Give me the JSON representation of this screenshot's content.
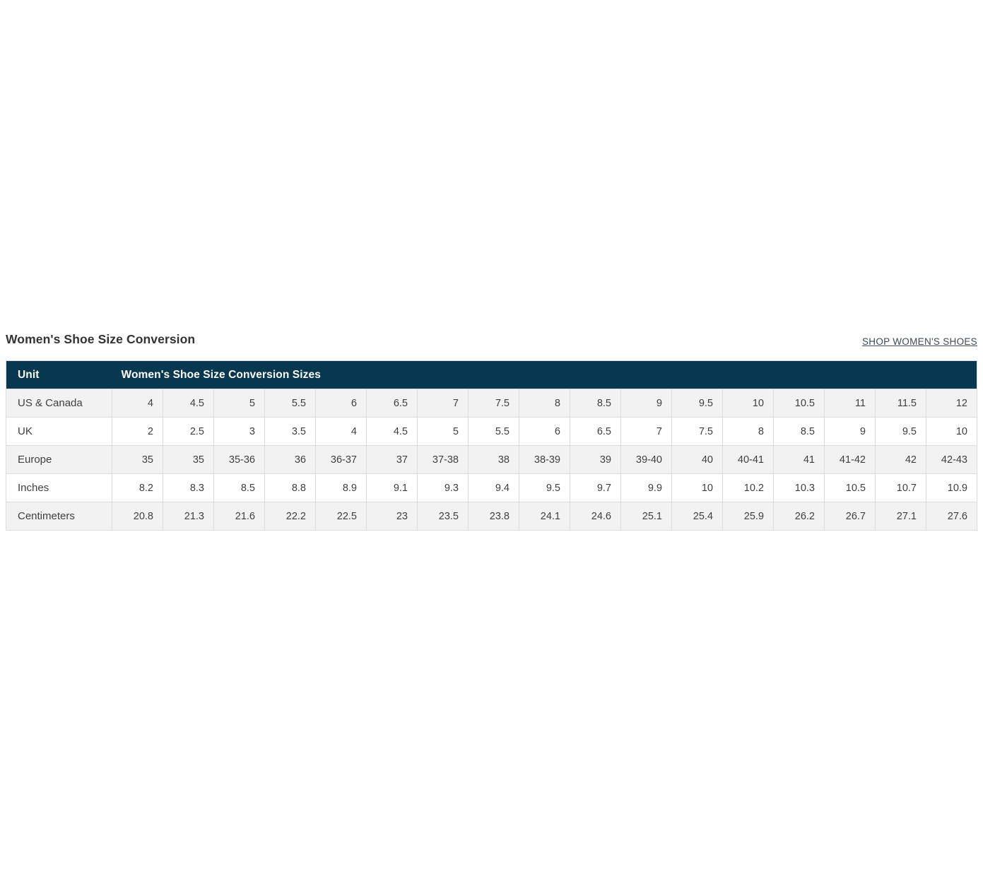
{
  "page": {
    "title": "Women's Shoe Size Conversion",
    "shop_link_label": "SHOP WOMEN'S SHOES"
  },
  "table": {
    "header": {
      "unit_label": "Unit",
      "sizes_label": "Women's Shoe Size Conversion Sizes"
    },
    "rows": [
      {
        "label": "US & Canada",
        "values": [
          "4",
          "4.5",
          "5",
          "5.5",
          "6",
          "6.5",
          "7",
          "7.5",
          "8",
          "8.5",
          "9",
          "9.5",
          "10",
          "10.5",
          "11",
          "11.5",
          "12"
        ]
      },
      {
        "label": "UK",
        "values": [
          "2",
          "2.5",
          "3",
          "3.5",
          "4",
          "4.5",
          "5",
          "5.5",
          "6",
          "6.5",
          "7",
          "7.5",
          "8",
          "8.5",
          "9",
          "9.5",
          "10"
        ]
      },
      {
        "label": "Europe",
        "values": [
          "35",
          "35",
          "35-36",
          "36",
          "36-37",
          "37",
          "37-38",
          "38",
          "38-39",
          "39",
          "39-40",
          "40",
          "40-41",
          "41",
          "41-42",
          "42",
          "42-43"
        ]
      },
      {
        "label": "Inches",
        "values": [
          "8.2",
          "8.3",
          "8.5",
          "8.8",
          "8.9",
          "9.1",
          "9.3",
          "9.4",
          "9.5",
          "9.7",
          "9.9",
          "10",
          "10.2",
          "10.3",
          "10.5",
          "10.7",
          "10.9"
        ]
      },
      {
        "label": "Centimeters",
        "values": [
          "20.8",
          "21.3",
          "21.6",
          "22.2",
          "22.5",
          "23",
          "23.5",
          "23.8",
          "24.1",
          "24.6",
          "25.1",
          "25.4",
          "25.9",
          "26.2",
          "26.7",
          "27.1",
          "27.6"
        ]
      }
    ]
  },
  "colors": {
    "header_bg": "#07384f",
    "row_alt_bg": "#f2f2f2",
    "border": "#dcdcdc",
    "link": "#3b4a54"
  }
}
